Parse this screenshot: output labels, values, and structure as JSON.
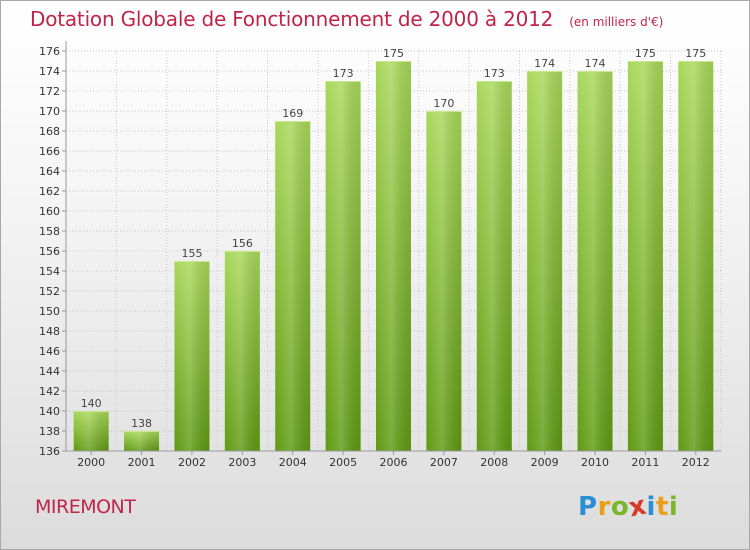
{
  "header": {
    "title": "Dotation Globale de Fonctionnement de 2000 à 2012",
    "unit": "(en milliers d'€)"
  },
  "footer": {
    "commune": "MIREMONT",
    "brand": "Proxiti",
    "brand_letters": [
      {
        "ch": "P",
        "color": "#2a8fd6"
      },
      {
        "ch": "r",
        "color": "#e8a019"
      },
      {
        "ch": "o",
        "color": "#79b62a"
      },
      {
        "ch": "x",
        "color": "#d63a2a"
      },
      {
        "ch": "i",
        "color": "#2a8fd6"
      },
      {
        "ch": "t",
        "color": "#e8a019"
      },
      {
        "ch": "i",
        "color": "#79b62a"
      }
    ]
  },
  "colors": {
    "title": "#c0244a",
    "bar_light": "#a6d655",
    "bar_dark": "#5f9a12",
    "grid": "#c8c8c8"
  },
  "chart_data": {
    "type": "bar",
    "title": "Dotation Globale de Fonctionnement de 2000 à 2012",
    "unit": "(en milliers d'€)",
    "categories": [
      "2000",
      "2001",
      "2002",
      "2003",
      "2004",
      "2005",
      "2006",
      "2007",
      "2008",
      "2009",
      "2010",
      "2011",
      "2012"
    ],
    "values": [
      140,
      138,
      155,
      156,
      169,
      173,
      175,
      170,
      173,
      174,
      174,
      175,
      175
    ],
    "xlabel": "",
    "ylabel": "",
    "ylim": [
      136,
      176
    ],
    "ytick_step": 2,
    "grid": true,
    "legend": "none"
  }
}
